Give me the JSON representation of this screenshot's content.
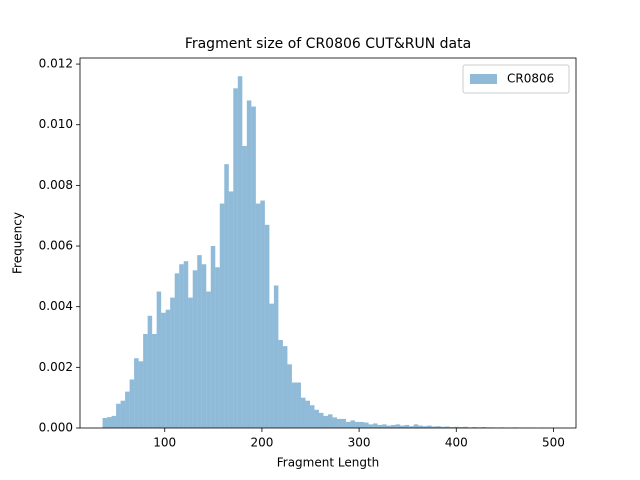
{
  "chart_data": {
    "type": "histogram",
    "title": "Fragment size of CR0806 CUT&RUN data",
    "x_label": "Fragment Length",
    "y_label": "Frequency",
    "bins": [
      36,
      40.64,
      45.28,
      49.92,
      54.56,
      59.2,
      63.84,
      68.48,
      73.12,
      77.76,
      82.4,
      87.04,
      91.68,
      96.32,
      100.96,
      105.6,
      110.24,
      114.88,
      119.52,
      124.16,
      128.8,
      133.44,
      138.08,
      142.72,
      147.36,
      152,
      156.64,
      161.28,
      165.92,
      170.56,
      175.2,
      179.84,
      184.48,
      189.12,
      193.76,
      198.4,
      203.04,
      207.68,
      212.32,
      216.96,
      221.6,
      226.24,
      230.88,
      235.52,
      240.16,
      244.8,
      249.44,
      254.08,
      258.72,
      263.36,
      268,
      272.64,
      277.28,
      281.92,
      286.56,
      291.2,
      295.84,
      300.48,
      305.12,
      309.76,
      314.4,
      319.04,
      323.68,
      328.32,
      332.96,
      337.6,
      342.24,
      346.88,
      351.52,
      356.16,
      360.8,
      365.44,
      370.08,
      374.72,
      379.36,
      384,
      388.64,
      393.28,
      397.92,
      402.56,
      407.2,
      411.84,
      416.48,
      421.12,
      425.76,
      430.4,
      435.04,
      439.68,
      444.32,
      448.96,
      453.6,
      458.24,
      462.88,
      467.52,
      472.16,
      476.8,
      481.44,
      486.08,
      490.72,
      495.36,
      500
    ],
    "series": [
      {
        "name": "CR0806",
        "color": "#1f77b4",
        "opacity": 0.5,
        "values": [
          0.00033,
          0.00036,
          0.0004,
          0.0008,
          0.0009,
          0.0012,
          0.0016,
          0.0023,
          0.0022,
          0.0031,
          0.0037,
          0.0031,
          0.0045,
          0.0038,
          0.0039,
          0.0043,
          0.0051,
          0.0054,
          0.0055,
          0.0043,
          0.0052,
          0.0057,
          0.0054,
          0.0045,
          0.006,
          0.0053,
          0.0074,
          0.0087,
          0.0078,
          0.0112,
          0.0116,
          0.0093,
          0.0108,
          0.0106,
          0.0074,
          0.0075,
          0.0067,
          0.0041,
          0.0047,
          0.0029,
          0.0027,
          0.0021,
          0.0015,
          0.0015,
          0.001,
          0.0009,
          0.00075,
          0.0006,
          0.0005,
          0.0004,
          0.00045,
          0.00035,
          0.0003,
          0.0003,
          0.0002,
          0.00025,
          0.0002,
          0.0002,
          0.00018,
          0.00012,
          0.00015,
          0.0001,
          0.00012,
          8e-05,
          0.0001,
          0.00012,
          8e-05,
          0.0001,
          6e-05,
          0.00012,
          8e-05,
          6e-05,
          8e-05,
          5e-05,
          6e-05,
          4e-05,
          5e-05,
          3e-05,
          4e-05,
          3e-05,
          4e-05,
          2e-05,
          3e-05,
          2e-05,
          3e-05,
          2e-05,
          2e-05,
          1e-05,
          2e-05,
          1e-05,
          1e-05,
          2e-05,
          1e-05,
          1e-05,
          1e-05,
          1e-05,
          0,
          1e-05,
          0,
          1e-05
        ]
      }
    ],
    "xlim": [
      12.8,
      523.2
    ],
    "ylim": [
      0,
      0.0122
    ],
    "xticks": [
      100,
      200,
      300,
      400,
      500
    ],
    "yticks": [
      {
        "value": 0,
        "label": "0.000"
      },
      {
        "value": 0.002,
        "label": "0.002"
      },
      {
        "value": 0.004,
        "label": "0.004"
      },
      {
        "value": 0.006,
        "label": "0.006"
      },
      {
        "value": 0.008,
        "label": "0.008"
      },
      {
        "value": 0.01,
        "label": "0.010"
      },
      {
        "value": 0.012,
        "label": "0.012"
      }
    ],
    "legend": "upper right",
    "grid": false
  }
}
